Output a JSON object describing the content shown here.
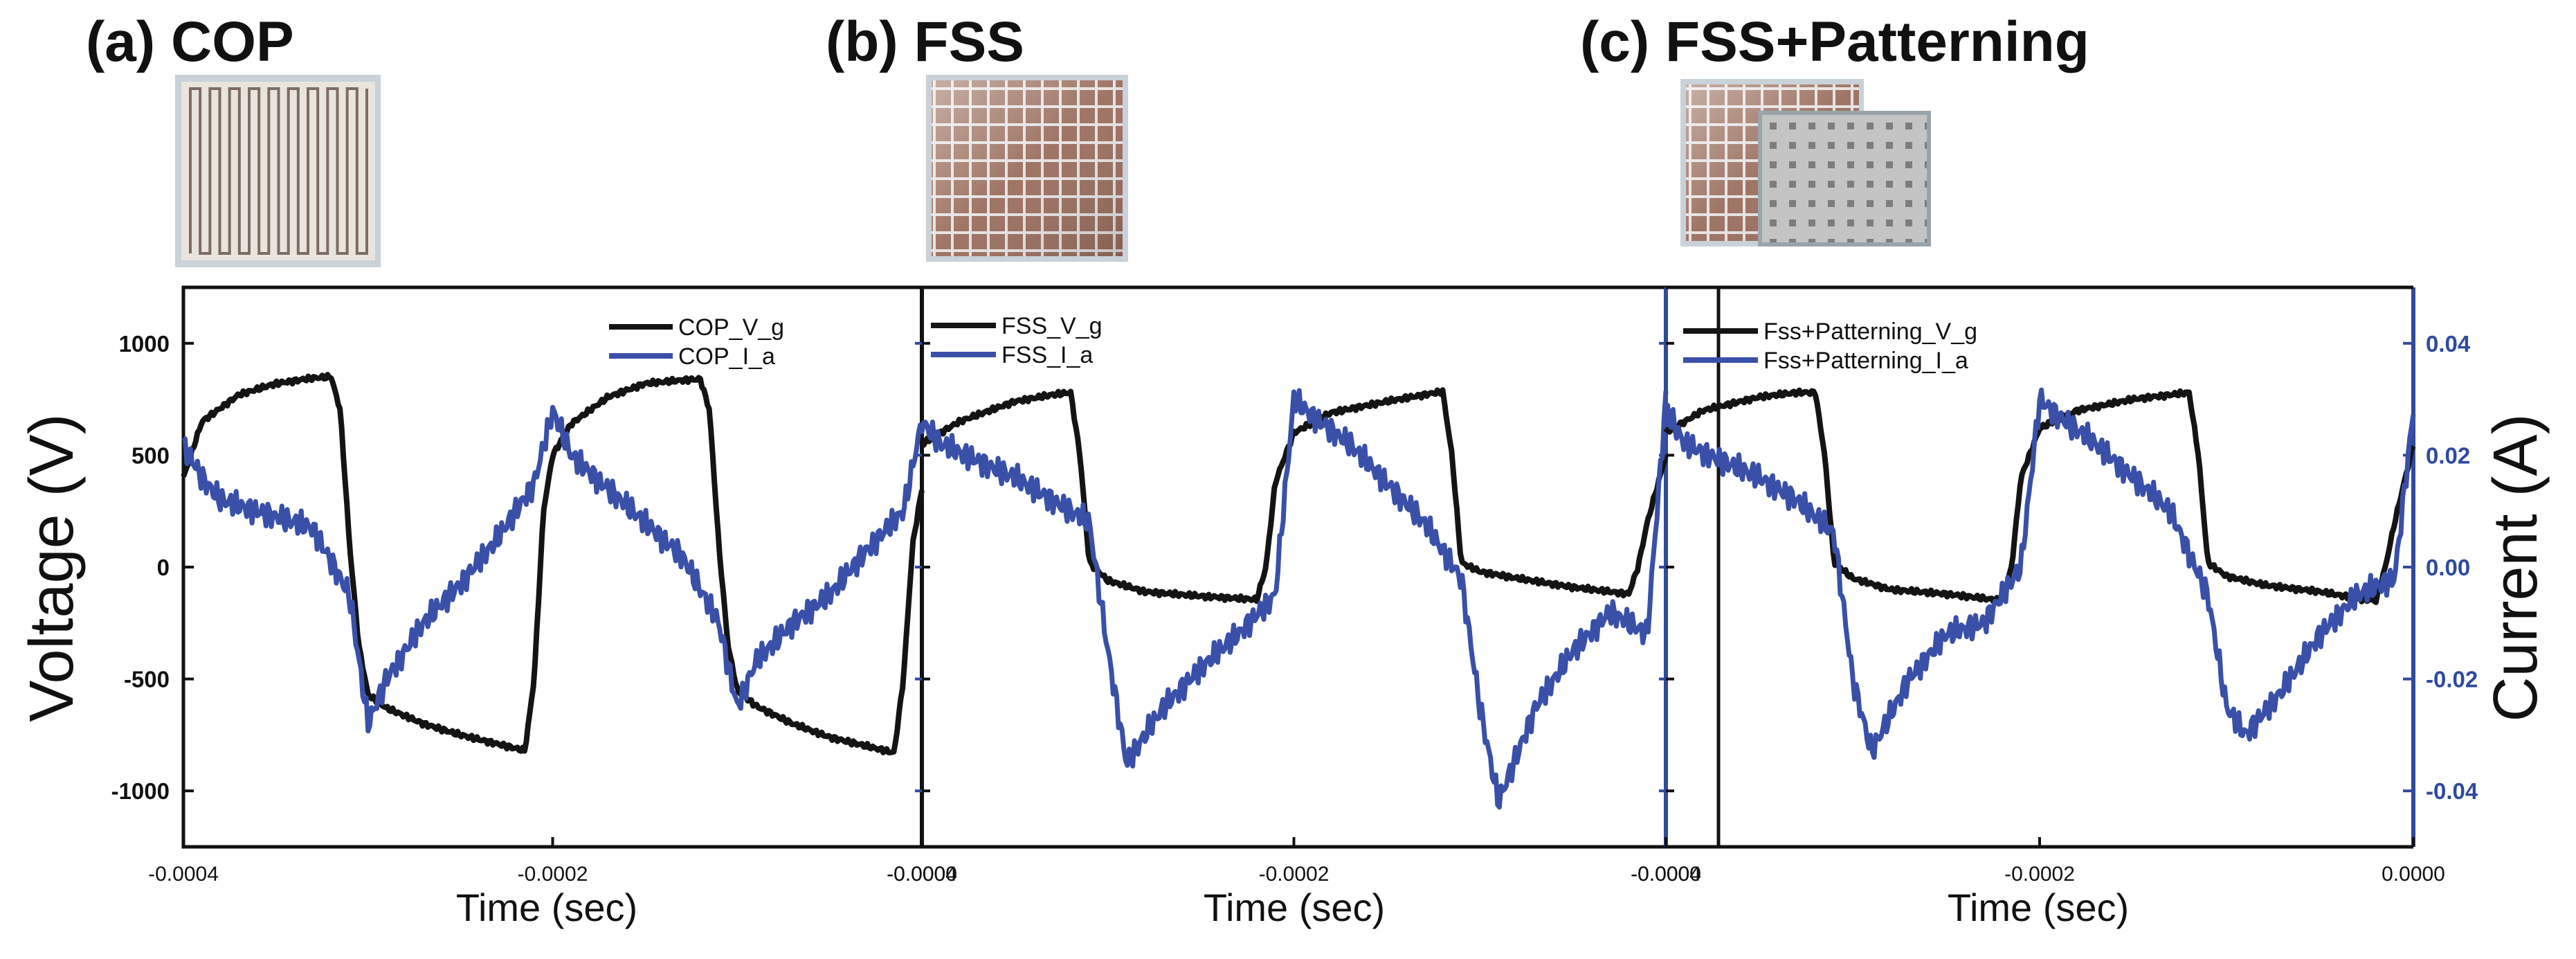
{
  "figure": {
    "colors": {
      "voltage": "#141414",
      "current": "#3a50a8",
      "right_axis": "#2f4a9e"
    },
    "y_left_label": "Voltage (V)",
    "y_right_label": "Current (A)",
    "y_left_ticks": [
      "1000",
      "500",
      "0",
      "-500",
      "-1000"
    ],
    "y_right_ticks": [
      "0.04",
      "0.02",
      "0.00",
      "-0.02",
      "-0.04"
    ],
    "photos": [
      {
        "name": "COP serpentine electrode photo"
      },
      {
        "name": "FSS grid electrode photo"
      },
      {
        "name": "FSS and patterned electrode photo"
      }
    ]
  },
  "chart_data": [
    {
      "type": "line",
      "title": "(a) COP",
      "xlabel": "Time (sec)",
      "ylabel": "Voltage (V)",
      "y2label": "Current (A)",
      "x_tick_labels": [
        "-0.0004",
        "-0.0002",
        "-0.0000"
      ],
      "xlim": [
        -0.0004,
        0.0
      ],
      "ylim": [
        -1250,
        1250
      ],
      "y2lim": [
        -0.05,
        0.05
      ],
      "series": [
        {
          "name": "COP_V_g",
          "axis": "left",
          "x": [
            -0.0004,
            -0.00039,
            -0.00037,
            -0.00035,
            -0.00033,
            -0.00032,
            -0.000315,
            -0.00031,
            -0.000305,
            -0.0003,
            -0.00029,
            -0.00027,
            -0.00025,
            -0.00023,
            -0.00022,
            -0.000215,
            -0.00021,
            -0.000205,
            -0.0002,
            -0.00019,
            -0.00017,
            -0.00015,
            -0.00013,
            -0.00012,
            -0.000115,
            -0.00011,
            -0.000105,
            -0.0001,
            -9e-05,
            -7e-05,
            -5e-05,
            -3e-05,
            -2e-05,
            -1.5e-05,
            -1e-05,
            -5e-06,
            0.0
          ],
          "values": [
            400,
            650,
            770,
            820,
            845,
            850,
            700,
            100,
            -350,
            -570,
            -630,
            -700,
            -750,
            -790,
            -810,
            -820,
            -500,
            250,
            500,
            640,
            760,
            820,
            835,
            840,
            700,
            100,
            -350,
            -550,
            -620,
            -700,
            -760,
            -800,
            -820,
            -830,
            -500,
            100,
            350
          ]
        },
        {
          "name": "COP_I_a",
          "axis": "right",
          "x": [
            -0.0004,
            -0.00039,
            -0.00038,
            -0.00035,
            -0.00033,
            -0.00031,
            -0.0003,
            -0.00029,
            -0.00027,
            -0.00025,
            -0.00023,
            -0.00021,
            -0.0002,
            -0.00019,
            -0.00017,
            -0.00015,
            -0.00013,
            -0.00011,
            -0.0001,
            -9e-05,
            -7e-05,
            -5e-05,
            -3e-05,
            -1e-05,
            0.0
          ],
          "values": [
            0.022,
            0.016,
            0.012,
            0.009,
            0.007,
            -0.005,
            -0.028,
            -0.02,
            -0.01,
            -0.003,
            0.005,
            0.015,
            0.028,
            0.02,
            0.014,
            0.008,
            0.002,
            -0.01,
            -0.025,
            -0.017,
            -0.01,
            -0.005,
            0.003,
            0.01,
            0.026
          ]
        }
      ]
    },
    {
      "type": "line",
      "title": "(b) FSS",
      "xlabel": "Time (sec)",
      "ylabel": "Voltage (V)",
      "y2label": "Current (A)",
      "x_tick_labels": [
        "-0.0004",
        "-0.0002",
        "-0.0000"
      ],
      "xlim": [
        -0.0004,
        0.0
      ],
      "ylim": [
        -1250,
        1250
      ],
      "y2lim": [
        -0.05,
        0.05
      ],
      "series": [
        {
          "name": "FSS_V_g",
          "axis": "left",
          "x": [
            -0.0004,
            -0.00038,
            -0.00035,
            -0.00033,
            -0.00032,
            -0.000315,
            -0.00031,
            -0.0003,
            -0.00028,
            -0.00025,
            -0.00023,
            -0.00022,
            -0.000215,
            -0.00021,
            -0.0002,
            -0.00018,
            -0.00015,
            -0.00013,
            -0.00012,
            -0.000115,
            -0.00011,
            -0.0001,
            -8e-05,
            -5e-05,
            -3e-05,
            -2e-05,
            -1.5e-05,
            -1e-05,
            0.0
          ],
          "values": [
            550,
            650,
            740,
            770,
            780,
            500,
            20,
            -60,
            -110,
            -130,
            -140,
            -145,
            0,
            380,
            600,
            690,
            740,
            770,
            785,
            500,
            20,
            -20,
            -50,
            -90,
            -110,
            -120,
            0,
            200,
            500
          ]
        },
        {
          "name": "FSS_I_a",
          "axis": "right",
          "x": [
            -0.0004,
            -0.00039,
            -0.00035,
            -0.00033,
            -0.00031,
            -0.0003,
            -0.00029,
            -0.00027,
            -0.00025,
            -0.00023,
            -0.00021,
            -0.0002,
            -0.00019,
            -0.00017,
            -0.00015,
            -0.00013,
            -0.00011,
            -0.0001,
            -9e-05,
            -7e-05,
            -5e-05,
            -3e-05,
            -1e-05,
            0.0
          ],
          "values": [
            0.026,
            0.022,
            0.016,
            0.012,
            0.008,
            -0.015,
            -0.035,
            -0.025,
            -0.018,
            -0.012,
            -0.005,
            0.03,
            0.027,
            0.022,
            0.015,
            0.008,
            -0.002,
            -0.025,
            -0.042,
            -0.025,
            -0.015,
            -0.008,
            -0.012,
            0.03
          ]
        }
      ]
    },
    {
      "type": "line",
      "title": "(c) FSS+Patterning",
      "xlabel": "Time (sec)",
      "ylabel": "Voltage (V)",
      "y2label": "Current (A)",
      "x_tick_labels": [
        "-0.0004",
        "-0.0002",
        "0.0000"
      ],
      "xlim": [
        -0.0004,
        0.0
      ],
      "ylim": [
        -1250,
        1250
      ],
      "y2lim": [
        -0.05,
        0.05
      ],
      "series": [
        {
          "name": "Fss+Patterning_V_g",
          "axis": "left",
          "x": [
            -0.0004,
            -0.00038,
            -0.00035,
            -0.00033,
            -0.00032,
            -0.000315,
            -0.00031,
            -0.0003,
            -0.00028,
            -0.00025,
            -0.00023,
            -0.00022,
            -0.000215,
            -0.00021,
            -0.0002,
            -0.00018,
            -0.00015,
            -0.00013,
            -0.00012,
            -0.000115,
            -0.00011,
            -0.0001,
            -8e-05,
            -5e-05,
            -3e-05,
            -2e-05,
            -1.5e-05,
            -1e-05,
            0.0
          ],
          "values": [
            600,
            700,
            760,
            780,
            780,
            500,
            20,
            -50,
            -100,
            -120,
            -140,
            -150,
            0,
            400,
            620,
            700,
            750,
            770,
            780,
            500,
            20,
            -40,
            -80,
            -110,
            -140,
            -150,
            0,
            200,
            550
          ]
        },
        {
          "name": "Fss+Patterning_I_a",
          "axis": "right",
          "x": [
            -0.0004,
            -0.00039,
            -0.00035,
            -0.00033,
            -0.00031,
            -0.0003,
            -0.00029,
            -0.00027,
            -0.00025,
            -0.00023,
            -0.00021,
            -0.0002,
            -0.00019,
            -0.00017,
            -0.00015,
            -0.00013,
            -0.00011,
            -0.0001,
            -9e-05,
            -7e-05,
            -5e-05,
            -3e-05,
            -1e-05,
            0.0
          ],
          "values": [
            0.028,
            0.022,
            0.016,
            0.012,
            0.006,
            -0.02,
            -0.033,
            -0.02,
            -0.012,
            -0.01,
            0.0,
            0.03,
            0.027,
            0.022,
            0.016,
            0.01,
            -0.005,
            -0.025,
            -0.03,
            -0.022,
            -0.012,
            -0.005,
            -0.002,
            0.028
          ]
        }
      ]
    }
  ]
}
